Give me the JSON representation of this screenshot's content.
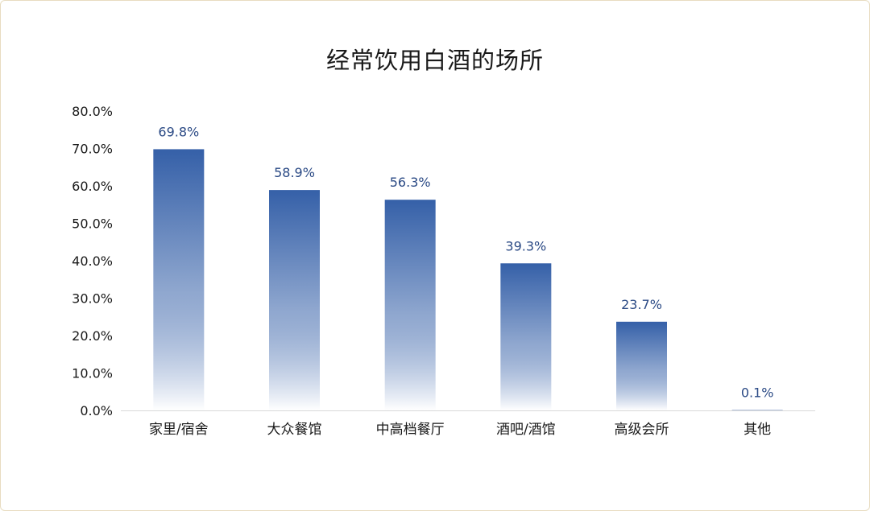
{
  "colors": {
    "bar_top": "#3560a8",
    "bar_bottom": "#ffffff",
    "data_label": "#2b4a85",
    "axis": "#d9d9d9",
    "frame_border": "#e8dcc0"
  },
  "chart_data": {
    "type": "bar",
    "title": "经常饮用白酒的场所",
    "xlabel": "",
    "ylabel": "",
    "categories": [
      "家里/宿舍",
      "大众餐馆",
      "中高档餐厅",
      "酒吧/酒馆",
      "高级会所",
      "其他"
    ],
    "values": [
      69.8,
      58.9,
      56.3,
      39.3,
      23.7,
      0.1
    ],
    "data_labels": [
      "69.8%",
      "58.9%",
      "56.3%",
      "39.3%",
      "23.7%",
      "0.1%"
    ],
    "ylim": [
      0,
      80
    ],
    "yticks": [
      0,
      10,
      20,
      30,
      40,
      50,
      60,
      70,
      80
    ],
    "ytick_labels": [
      "0.0%",
      "10.0%",
      "20.0%",
      "30.0%",
      "40.0%",
      "50.0%",
      "60.0%",
      "70.0%",
      "80.0%"
    ],
    "grid": false,
    "legend": "none"
  }
}
